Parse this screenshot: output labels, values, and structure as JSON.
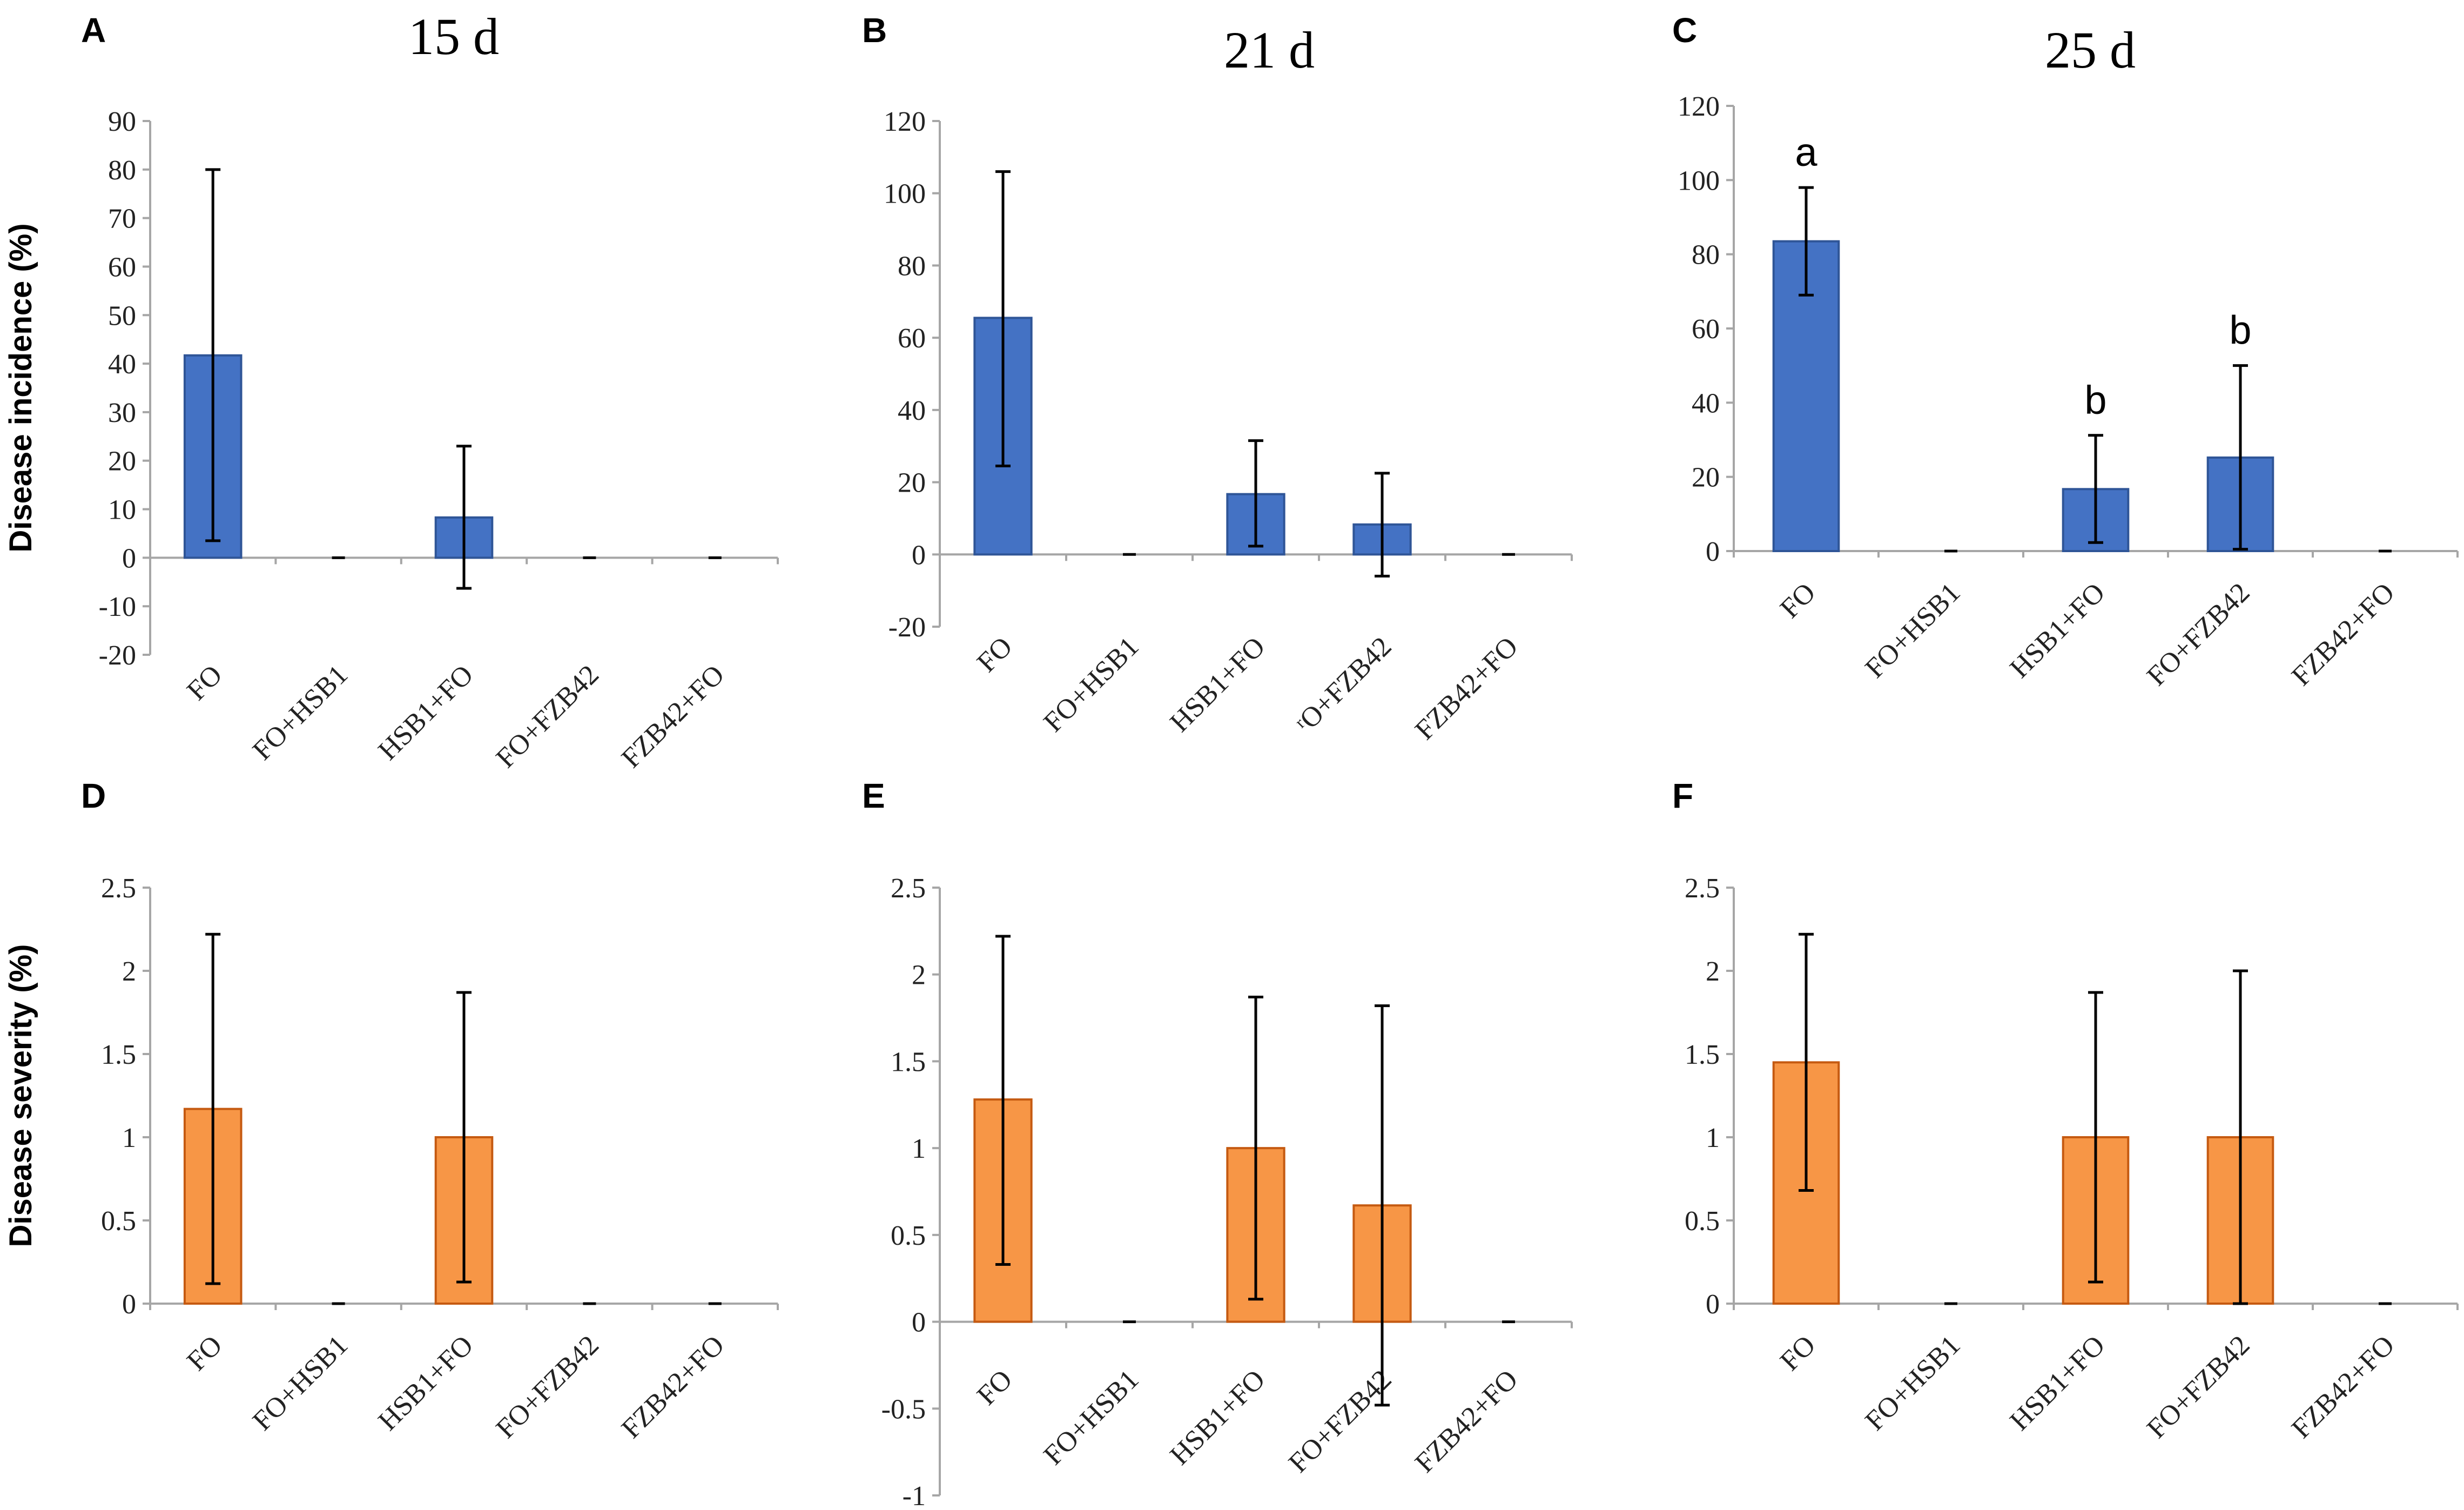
{
  "colors": {
    "incidence": "#4472C4",
    "incidence_edge": "#2F5597",
    "severity": "#F79646",
    "severity_edge": "#C55A11"
  },
  "chart_data": [
    {
      "panel": "A",
      "title": "15 d",
      "type": "bar",
      "ylabel": "Disease incidence (%)",
      "ylim": [
        -20,
        90
      ],
      "yticks": [
        -20,
        -10,
        0,
        10,
        20,
        30,
        40,
        50,
        60,
        70,
        80,
        90
      ],
      "tick_labels": [
        "-20",
        "-10",
        "0",
        "10",
        "20",
        "30",
        "40",
        "50",
        "60",
        "70",
        "80",
        "90"
      ],
      "categories": [
        "FO",
        "FO+HSB1",
        "HSB1+FO",
        "FO+FZB42",
        "FZB42+FO"
      ],
      "values": [
        41.7,
        0,
        8.3,
        0,
        0
      ],
      "err_low": [
        3.5,
        0,
        -6.3,
        0,
        0
      ],
      "err_high": [
        80,
        0,
        23,
        0,
        0
      ],
      "letters": [
        "",
        "",
        "",
        "",
        ""
      ]
    },
    {
      "panel": "B",
      "title": "21 d",
      "type": "bar",
      "ylabel": "",
      "ylim": [
        -20,
        120
      ],
      "yticks": [
        -20,
        0,
        20,
        40,
        60,
        80,
        100,
        120
      ],
      "tick_labels": [
        "-20",
        "0",
        "20",
        "40",
        "60",
        "80",
        "100",
        "120"
      ],
      "categories": [
        "FO",
        "FO+HSB1",
        "HSB1+FO",
        "ʳO+FZB42",
        "FZB42+FO"
      ],
      "values": [
        65.5,
        0,
        16.7,
        8.3,
        0
      ],
      "err_low": [
        24.5,
        0,
        2.3,
        -6,
        0
      ],
      "err_high": [
        106,
        0,
        31.5,
        22.5,
        0
      ],
      "letters": [
        "",
        "",
        "",
        "",
        ""
      ]
    },
    {
      "panel": "C",
      "title": "25 d",
      "type": "bar",
      "ylabel": "",
      "ylim": [
        0,
        120
      ],
      "yticks": [
        0,
        20,
        40,
        60,
        80,
        100,
        120
      ],
      "tick_labels": [
        "0",
        "20",
        "40",
        "60",
        "80",
        "100",
        "120"
      ],
      "categories": [
        "FO",
        "FO+HSB1",
        "HSB1+FO",
        "FO+FZB42",
        "FZB42+FO"
      ],
      "values": [
        83.5,
        0,
        16.7,
        25.2,
        0
      ],
      "err_low": [
        69,
        0,
        2.3,
        0.5,
        0
      ],
      "err_high": [
        98,
        0,
        31.2,
        50,
        0
      ],
      "letters": [
        "a",
        "",
        "b",
        "b",
        ""
      ]
    },
    {
      "panel": "D",
      "title": "",
      "type": "bar",
      "ylabel": "Disease severity (%)",
      "ylim": [
        0,
        2.5
      ],
      "yticks": [
        0,
        0.5,
        1,
        1.5,
        2,
        2.5
      ],
      "tick_labels": [
        "0",
        "0.5",
        "1",
        "1.5",
        "2",
        "2.5"
      ],
      "categories": [
        "FO",
        "FO+HSB1",
        "HSB1+FO",
        "FO+FZB42",
        "FZB42+FO"
      ],
      "values": [
        1.17,
        0,
        1.0,
        0,
        0
      ],
      "err_low": [
        0.12,
        0,
        0.13,
        0,
        0
      ],
      "err_high": [
        2.22,
        0,
        1.87,
        0,
        0
      ],
      "letters": [
        "",
        "",
        "",
        "",
        ""
      ]
    },
    {
      "panel": "E",
      "title": "",
      "type": "bar",
      "ylabel": "",
      "ylim": [
        -1,
        2.5
      ],
      "yticks": [
        -1,
        -0.5,
        0,
        0.5,
        1,
        1.5,
        2,
        2.5
      ],
      "tick_labels": [
        "-1",
        "-0.5",
        "0",
        "0.5",
        "1",
        "1.5",
        "2",
        "2.5"
      ],
      "categories": [
        "FO",
        "FO+HSB1",
        "HSB1+FO",
        "FO+FZB42",
        "FZB42+FO"
      ],
      "values": [
        1.28,
        0,
        1.0,
        0.67,
        0
      ],
      "err_low": [
        0.33,
        0,
        0.13,
        -0.48,
        0
      ],
      "err_high": [
        2.22,
        0,
        1.87,
        1.82,
        0
      ],
      "letters": [
        "",
        "",
        "",
        "",
        ""
      ]
    },
    {
      "panel": "F",
      "title": "",
      "type": "bar",
      "ylabel": "",
      "ylim": [
        0,
        2.5
      ],
      "yticks": [
        0,
        0.5,
        1,
        1.5,
        2,
        2.5
      ],
      "tick_labels": [
        "0",
        "0.5",
        "1",
        "1.5",
        "2",
        "2.5"
      ],
      "categories": [
        "FO",
        "FO+HSB1",
        "HSB1+FO",
        "FO+FZB42",
        "FZB42+FO"
      ],
      "values": [
        1.45,
        0,
        1.0,
        1.0,
        0
      ],
      "err_low": [
        0.68,
        0,
        0.13,
        0,
        0
      ],
      "err_high": [
        2.22,
        0,
        1.87,
        2.0,
        0
      ],
      "letters": [
        "",
        "",
        "",
        "",
        ""
      ]
    }
  ]
}
